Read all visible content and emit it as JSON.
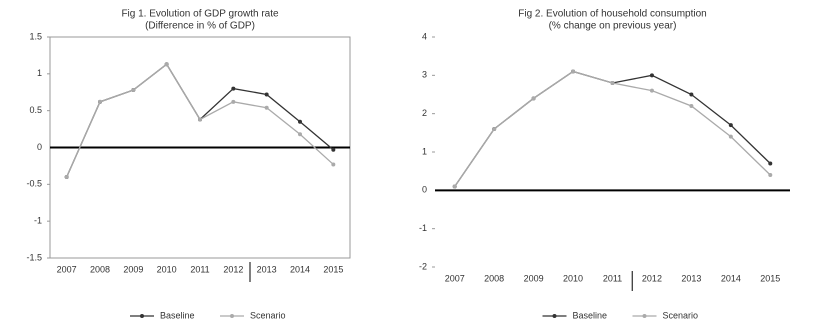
{
  "chart_data": [
    {
      "type": "line",
      "title": "Fig 1. Evolution of GDP growth rate",
      "subtitle": "(Difference in % of GDP)",
      "categories": [
        "2007",
        "2008",
        "2009",
        "2010",
        "2011",
        "2012",
        "2013",
        "2014",
        "2015"
      ],
      "series": [
        {
          "name": "Baseline",
          "color": "#333333",
          "values": [
            -0.4,
            0.62,
            0.78,
            1.13,
            0.38,
            0.8,
            0.72,
            0.35,
            -0.03
          ]
        },
        {
          "name": "Scenario",
          "color": "#aaaaaa",
          "values": [
            -0.4,
            0.62,
            0.78,
            1.13,
            0.38,
            0.62,
            0.54,
            0.18,
            -0.23
          ]
        }
      ],
      "ylim": [
        -1.5,
        1.5
      ],
      "yticks": [
        -1.5,
        -1,
        -0.5,
        0,
        0.5,
        1,
        1.5
      ],
      "frame": true
    },
    {
      "type": "line",
      "title": "Fig 2. Evolution of household consumption",
      "subtitle": "(% change on previous year)",
      "categories": [
        "2007",
        "2008",
        "2009",
        "2010",
        "2011",
        "2012",
        "2013",
        "2014",
        "2015"
      ],
      "series": [
        {
          "name": "Baseline",
          "color": "#333333",
          "values": [
            0.1,
            1.6,
            2.4,
            3.1,
            2.8,
            3.0,
            2.5,
            1.7,
            0.7
          ]
        },
        {
          "name": "Scenario",
          "color": "#aaaaaa",
          "values": [
            0.1,
            1.6,
            2.4,
            3.1,
            2.8,
            2.6,
            2.2,
            1.4,
            0.4
          ]
        }
      ],
      "ylim": [
        -2,
        4
      ],
      "yticks": [
        -2,
        -1,
        0,
        1,
        2,
        3,
        4
      ],
      "frame": false
    }
  ]
}
